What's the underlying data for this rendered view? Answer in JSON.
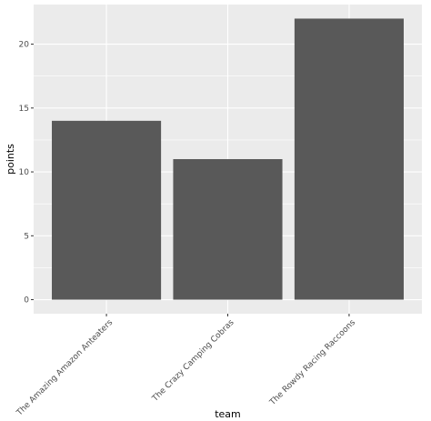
{
  "chart_data": {
    "type": "bar",
    "categories": [
      "The Amazing Amazon Anteaters",
      "The Crazy Camping Cobras",
      "The Rowdy Racing Raccoons"
    ],
    "values": [
      14,
      11,
      22
    ],
    "xlabel": "team",
    "ylabel": "points",
    "ylim": [
      -1.1,
      23.1
    ],
    "yticks": [
      0,
      5,
      10,
      15,
      20
    ],
    "grid": true,
    "legend": "none",
    "colors": {
      "panel": "#ebebeb",
      "grid_major": "#ffffff",
      "bar": "#595959",
      "tick_text": "#4d4d4d",
      "title_text": "#000000"
    }
  }
}
